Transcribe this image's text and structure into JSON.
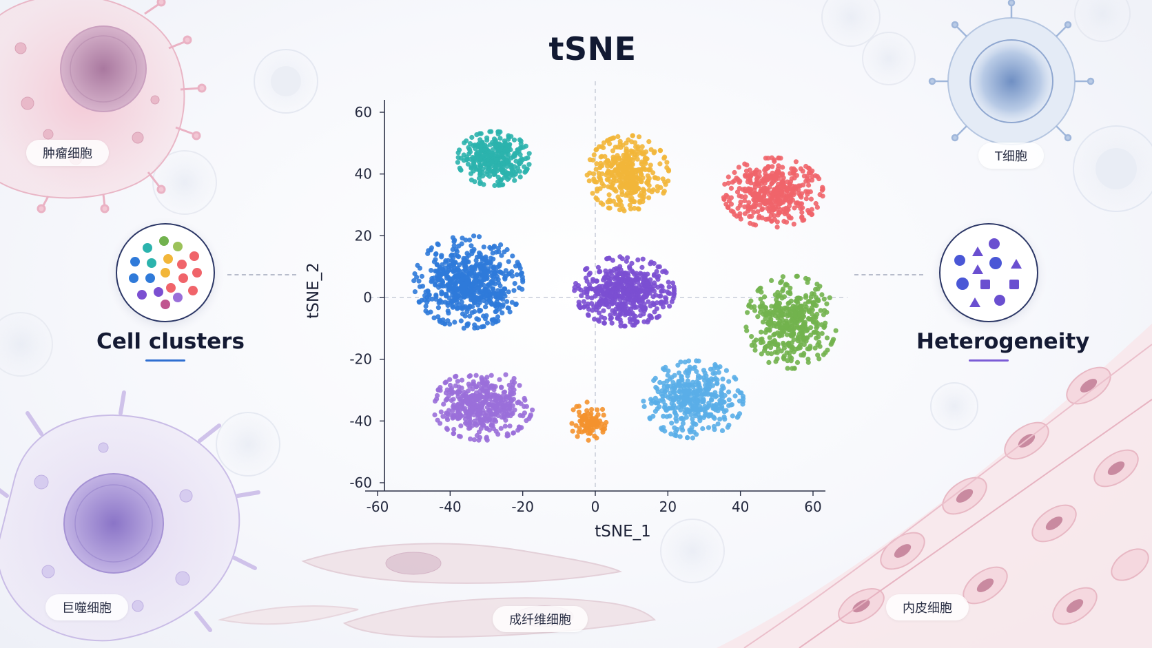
{
  "title": "tSNE",
  "left_panel": {
    "label": "Cell clusters",
    "accent": "#2f6fd1"
  },
  "right_panel": {
    "label": "Heterogeneity",
    "accent": "#7b5cd6"
  },
  "cell_labels": {
    "tumor": "肿瘤细胞",
    "t_cell": "T细胞",
    "macrophage": "巨噬细胞",
    "fibroblast": "成纤维细胞",
    "endothelial": "内皮细胞"
  },
  "chart_data": {
    "type": "scatter",
    "title": "tSNE",
    "xlabel": "tSNE_1",
    "ylabel": "tSNE_2",
    "xlim": [
      -60,
      60
    ],
    "ylim": [
      -60,
      60
    ],
    "xticks": [
      -60,
      -40,
      -20,
      0,
      20,
      40,
      60
    ],
    "yticks": [
      -60,
      -40,
      -20,
      0,
      20,
      40,
      60
    ],
    "grid": false,
    "reference_lines": {
      "x": 0,
      "y": 0
    },
    "clusters": [
      {
        "color": "#2bb3ad",
        "center": [
          -28,
          45
        ],
        "spread": [
          8,
          7
        ],
        "n": 330
      },
      {
        "color": "#f2b63a",
        "center": [
          9,
          40
        ],
        "spread": [
          9,
          10
        ],
        "n": 380
      },
      {
        "color": "#f0646a",
        "center": [
          49,
          34
        ],
        "spread": [
          11,
          9
        ],
        "n": 430
      },
      {
        "color": "#2f7ad9",
        "center": [
          -35,
          5
        ],
        "spread": [
          12,
          12
        ],
        "n": 620
      },
      {
        "color": "#7b4fd1",
        "center": [
          8,
          2
        ],
        "spread": [
          11,
          9
        ],
        "n": 520
      },
      {
        "color": "#72b24e",
        "center": [
          54,
          -8
        ],
        "spread": [
          10,
          12
        ],
        "n": 420
      },
      {
        "color": "#9a6fd9",
        "center": [
          -31,
          -35
        ],
        "spread": [
          11,
          9
        ],
        "n": 440
      },
      {
        "color": "#f4922e",
        "center": [
          -2,
          -40
        ],
        "spread": [
          4,
          5
        ],
        "n": 90
      },
      {
        "color": "#5aaee8",
        "center": [
          27,
          -33
        ],
        "spread": [
          11,
          10
        ],
        "n": 400
      }
    ]
  }
}
